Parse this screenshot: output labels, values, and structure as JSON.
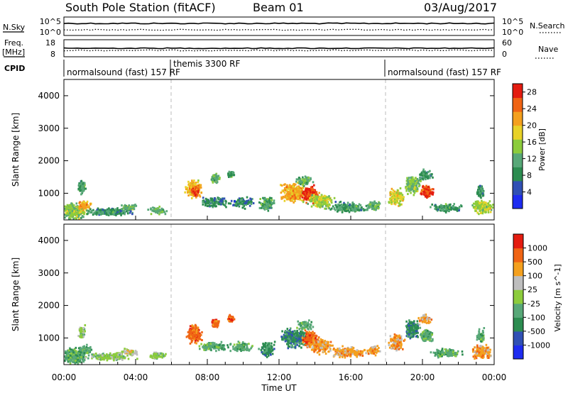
{
  "header": {
    "title": "South Pole Station (fitACF)",
    "beam": "Beam 01",
    "date": "03/Aug/2017"
  },
  "noise_panel": {
    "left_label": "N.Sky",
    "right_label": "N.Search",
    "left_ticks": [
      "10^5",
      "10^0"
    ],
    "right_ticks": [
      "10^5",
      "10^0"
    ]
  },
  "freq_panel": {
    "left_label_1": "Freq.",
    "left_label_2": "[MHz]",
    "right_label": "Nave",
    "left_ticks": [
      "18",
      "8"
    ],
    "right_ticks": [
      "60",
      "0"
    ]
  },
  "cpid": {
    "label": "CPID",
    "segments": [
      {
        "text": "normalsound (fast) 157 RF",
        "start_hour": 0
      },
      {
        "text": "themis 3300 RF",
        "start_hour": 6
      },
      {
        "text": "normalsound (fast) 157 RF",
        "start_hour": 18
      }
    ]
  },
  "x_axis": {
    "label": "Time UT",
    "ticks": [
      "00:00",
      "04:00",
      "08:00",
      "12:00",
      "16:00",
      "20:00",
      "00:00"
    ],
    "range_hours": [
      0,
      24
    ]
  },
  "chart_data": [
    {
      "type": "heatmap",
      "title": "Power",
      "ylabel": "Slant Range [km]",
      "yticks": [
        "1000",
        "2000",
        "3000",
        "4000"
      ],
      "ylim": [
        180,
        4500
      ],
      "colorbar": {
        "label": "Power [dB]",
        "ticks": [
          "4",
          "8",
          "12",
          "16",
          "20",
          "24",
          "28"
        ],
        "range": [
          0,
          30
        ],
        "colors": [
          "#1e2cf0",
          "#3050b4",
          "#2c8c50",
          "#58a878",
          "#8ccc3c",
          "#e8d228",
          "#f4a01e",
          "#f06414",
          "#e41c10"
        ]
      },
      "blobs": [
        {
          "t": 0.5,
          "r": 420,
          "dt": 0.9,
          "dr": 300,
          "v": 14,
          "n": 300
        },
        {
          "t": 0.95,
          "r": 1180,
          "dt": 0.25,
          "dr": 250,
          "v": 10,
          "n": 70
        },
        {
          "t": 1.1,
          "r": 620,
          "dt": 0.45,
          "dr": 180,
          "v": 22,
          "n": 70
        },
        {
          "t": 2.5,
          "r": 420,
          "dt": 1.6,
          "dr": 140,
          "v": 9,
          "n": 240
        },
        {
          "t": 3.6,
          "r": 560,
          "dt": 0.6,
          "dr": 120,
          "v": 13,
          "n": 60
        },
        {
          "t": 5.2,
          "r": 450,
          "dt": 0.6,
          "dr": 140,
          "v": 12,
          "n": 70
        },
        {
          "t": 7.2,
          "r": 1120,
          "dt": 0.55,
          "dr": 330,
          "v": 20,
          "n": 200
        },
        {
          "t": 7.3,
          "r": 1050,
          "dt": 0.3,
          "dr": 220,
          "v": 26,
          "n": 70
        },
        {
          "t": 8.4,
          "r": 1450,
          "dt": 0.3,
          "dr": 170,
          "v": 12,
          "n": 70
        },
        {
          "t": 9.25,
          "r": 1580,
          "dt": 0.25,
          "dr": 140,
          "v": 10,
          "n": 50
        },
        {
          "t": 8.3,
          "r": 720,
          "dt": 1.1,
          "dr": 180,
          "v": 9,
          "n": 130
        },
        {
          "t": 9.9,
          "r": 700,
          "dt": 0.8,
          "dr": 200,
          "v": 8,
          "n": 90
        },
        {
          "t": 11.3,
          "r": 650,
          "dt": 0.5,
          "dr": 280,
          "v": 11,
          "n": 110
        },
        {
          "t": 12.8,
          "r": 1000,
          "dt": 0.9,
          "dr": 380,
          "v": 21,
          "n": 320
        },
        {
          "t": 13.7,
          "r": 950,
          "dt": 0.55,
          "dr": 300,
          "v": 27,
          "n": 200
        },
        {
          "t": 14.3,
          "r": 750,
          "dt": 0.9,
          "dr": 300,
          "v": 16,
          "n": 170
        },
        {
          "t": 13.4,
          "r": 1380,
          "dt": 0.6,
          "dr": 180,
          "v": 12,
          "n": 70
        },
        {
          "t": 15.8,
          "r": 550,
          "dt": 1.3,
          "dr": 200,
          "v": 10,
          "n": 180
        },
        {
          "t": 17.2,
          "r": 600,
          "dt": 0.5,
          "dr": 180,
          "v": 12,
          "n": 70
        },
        {
          "t": 18.5,
          "r": 850,
          "dt": 0.55,
          "dr": 330,
          "v": 18,
          "n": 130
        },
        {
          "t": 19.4,
          "r": 1250,
          "dt": 0.55,
          "dr": 350,
          "v": 14,
          "n": 170
        },
        {
          "t": 20.2,
          "r": 1050,
          "dt": 0.45,
          "dr": 220,
          "v": 27,
          "n": 150
        },
        {
          "t": 20.1,
          "r": 1550,
          "dt": 0.5,
          "dr": 200,
          "v": 10,
          "n": 70
        },
        {
          "t": 21.3,
          "r": 520,
          "dt": 1.1,
          "dr": 160,
          "v": 10,
          "n": 140
        },
        {
          "t": 23.3,
          "r": 560,
          "dt": 0.7,
          "dr": 260,
          "v": 16,
          "n": 170
        },
        {
          "t": 23.2,
          "r": 1050,
          "dt": 0.3,
          "dr": 300,
          "v": 9,
          "n": 50
        }
      ]
    },
    {
      "type": "heatmap",
      "title": "Velocity",
      "ylabel": "Slant Range [km]",
      "yticks": [
        "1000",
        "2000",
        "3000",
        "4000"
      ],
      "ylim": [
        180,
        4500
      ],
      "colorbar": {
        "label": "Velocity [m s^-1]",
        "ticks": [
          "1000",
          "500",
          "100",
          "25",
          "-25",
          "-100",
          "-500",
          "-1000"
        ],
        "colors": [
          "#1e2cf0",
          "#3050b4",
          "#2c8c50",
          "#58a878",
          "#8ccc3c",
          "#bebebe",
          "#f4a01e",
          "#f06414",
          "#e41c10"
        ]
      },
      "blobs": [
        {
          "t": 0.5,
          "r": 420,
          "dt": 0.9,
          "dr": 300,
          "v": 3,
          "n": 300
        },
        {
          "t": 0.95,
          "r": 1180,
          "dt": 0.25,
          "dr": 250,
          "v": 4,
          "n": 70
        },
        {
          "t": 1.1,
          "r": 620,
          "dt": 0.45,
          "dr": 180,
          "v": 3,
          "n": 70
        },
        {
          "t": 2.5,
          "r": 420,
          "dt": 1.6,
          "dr": 140,
          "v": 4,
          "n": 240
        },
        {
          "t": 3.6,
          "r": 560,
          "dt": 0.6,
          "dr": 120,
          "v": 5,
          "n": 60
        },
        {
          "t": 5.2,
          "r": 450,
          "dt": 0.6,
          "dr": 140,
          "v": 4,
          "n": 70
        },
        {
          "t": 7.2,
          "r": 1120,
          "dt": 0.55,
          "dr": 330,
          "v": 7,
          "n": 200
        },
        {
          "t": 7.3,
          "r": 1050,
          "dt": 0.3,
          "dr": 220,
          "v": 7,
          "n": 70
        },
        {
          "t": 8.4,
          "r": 1450,
          "dt": 0.3,
          "dr": 170,
          "v": 7,
          "n": 70
        },
        {
          "t": 9.25,
          "r": 1580,
          "dt": 0.25,
          "dr": 140,
          "v": 7,
          "n": 50
        },
        {
          "t": 8.3,
          "r": 720,
          "dt": 1.1,
          "dr": 180,
          "v": 3,
          "n": 130
        },
        {
          "t": 9.9,
          "r": 700,
          "dt": 0.8,
          "dr": 200,
          "v": 3,
          "n": 90
        },
        {
          "t": 11.3,
          "r": 650,
          "dt": 0.5,
          "dr": 280,
          "v": 2,
          "n": 110
        },
        {
          "t": 12.8,
          "r": 1000,
          "dt": 0.9,
          "dr": 380,
          "v": 2,
          "n": 320
        },
        {
          "t": 13.7,
          "r": 950,
          "dt": 0.55,
          "dr": 300,
          "v": 7,
          "n": 200
        },
        {
          "t": 14.3,
          "r": 750,
          "dt": 0.9,
          "dr": 300,
          "v": 6,
          "n": 170
        },
        {
          "t": 13.4,
          "r": 1380,
          "dt": 0.6,
          "dr": 180,
          "v": 3,
          "n": 70
        },
        {
          "t": 15.8,
          "r": 550,
          "dt": 1.3,
          "dr": 200,
          "v": 6,
          "n": 180
        },
        {
          "t": 17.2,
          "r": 600,
          "dt": 0.5,
          "dr": 180,
          "v": 6,
          "n": 70
        },
        {
          "t": 18.5,
          "r": 850,
          "dt": 0.55,
          "dr": 330,
          "v": 6,
          "n": 130
        },
        {
          "t": 19.4,
          "r": 1250,
          "dt": 0.55,
          "dr": 350,
          "v": 2,
          "n": 170
        },
        {
          "t": 20.2,
          "r": 1050,
          "dt": 0.45,
          "dr": 220,
          "v": 3,
          "n": 150
        },
        {
          "t": 20.1,
          "r": 1550,
          "dt": 0.5,
          "dr": 200,
          "v": 6,
          "n": 70
        },
        {
          "t": 21.3,
          "r": 520,
          "dt": 1.1,
          "dr": 160,
          "v": 3,
          "n": 140
        },
        {
          "t": 23.3,
          "r": 560,
          "dt": 0.7,
          "dr": 260,
          "v": 6,
          "n": 170
        },
        {
          "t": 23.2,
          "r": 1050,
          "dt": 0.3,
          "dr": 300,
          "v": 3,
          "n": 50
        }
      ]
    }
  ]
}
